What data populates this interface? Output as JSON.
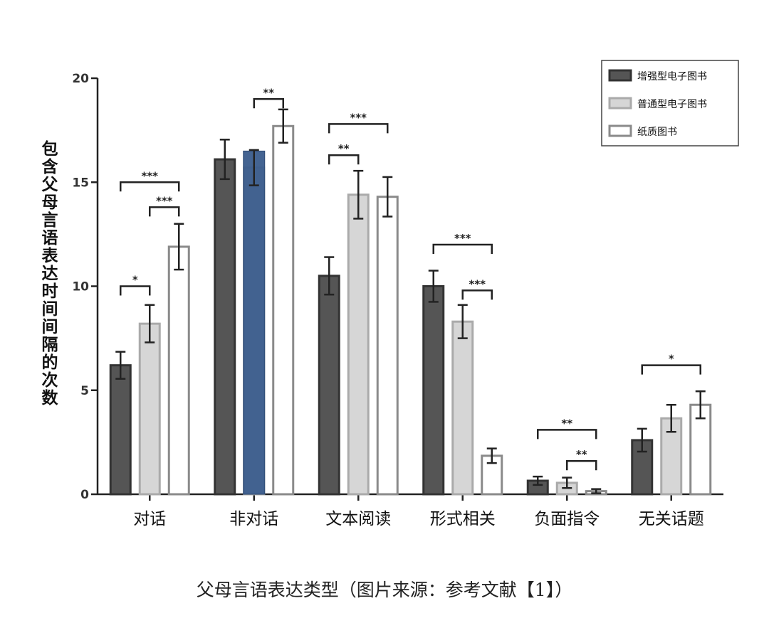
{
  "chart_data": {
    "type": "bar",
    "ylabel": "包含父母言语表达时间间隔的次数",
    "xlabel": "父母言语表达类型（图片来源：参考文献【1】）",
    "ylim": [
      0,
      20
    ],
    "yticks": [
      0,
      5,
      10,
      15,
      20
    ],
    "categories": [
      "对话",
      "非对话",
      "文本阅读",
      "形式相关",
      "负面指令",
      "无关话题"
    ],
    "series": [
      {
        "name": "增强型电子图书",
        "values": [
          6.2,
          16.1,
          10.5,
          10.0,
          0.65,
          2.6
        ],
        "errors": [
          0.65,
          0.95,
          0.9,
          0.75,
          0.2,
          0.55
        ],
        "color": "#555555"
      },
      {
        "name": "普通型电子图书",
        "values": [
          8.2,
          15.7,
          14.4,
          8.3,
          0.55,
          3.65
        ],
        "errors": [
          0.9,
          0.85,
          1.15,
          0.8,
          0.25,
          0.65
        ],
        "color": "#d6d6d6"
      },
      {
        "name": "纸质图书",
        "values": [
          11.9,
          17.7,
          14.3,
          1.85,
          0.15,
          4.3
        ],
        "errors": [
          1.1,
          0.8,
          0.95,
          0.35,
          0.1,
          0.65
        ],
        "color": "#ffffff"
      }
    ],
    "highlight": {
      "category_index": 1,
      "series_index": 1,
      "value": 16.5,
      "color": "#3a5c8c"
    },
    "significance": [
      {
        "category_index": 0,
        "from_series": 0,
        "to_series": 2,
        "y": 15.0,
        "label": "***"
      },
      {
        "category_index": 0,
        "from_series": 1,
        "to_series": 2,
        "y": 13.8,
        "label": "***"
      },
      {
        "category_index": 0,
        "from_series": 0,
        "to_series": 1,
        "y": 10.0,
        "label": "*"
      },
      {
        "category_index": 1,
        "from_series": 1,
        "to_series": 2,
        "y": 19.0,
        "label": "**"
      },
      {
        "category_index": 2,
        "from_series": 0,
        "to_series": 2,
        "y": 17.8,
        "label": "***"
      },
      {
        "category_index": 2,
        "from_series": 0,
        "to_series": 1,
        "y": 16.3,
        "label": "**"
      },
      {
        "category_index": 3,
        "from_series": 0,
        "to_series": 2,
        "y": 12.0,
        "label": "***"
      },
      {
        "category_index": 3,
        "from_series": 1,
        "to_series": 2,
        "y": 9.8,
        "label": "***"
      },
      {
        "category_index": 4,
        "from_series": 0,
        "to_series": 2,
        "y": 3.1,
        "label": "**"
      },
      {
        "category_index": 4,
        "from_series": 1,
        "to_series": 2,
        "y": 1.6,
        "label": "**"
      },
      {
        "category_index": 5,
        "from_series": 0,
        "to_series": 2,
        "y": 6.2,
        "label": "*"
      }
    ],
    "legend_position": "top-right",
    "grid": false
  }
}
